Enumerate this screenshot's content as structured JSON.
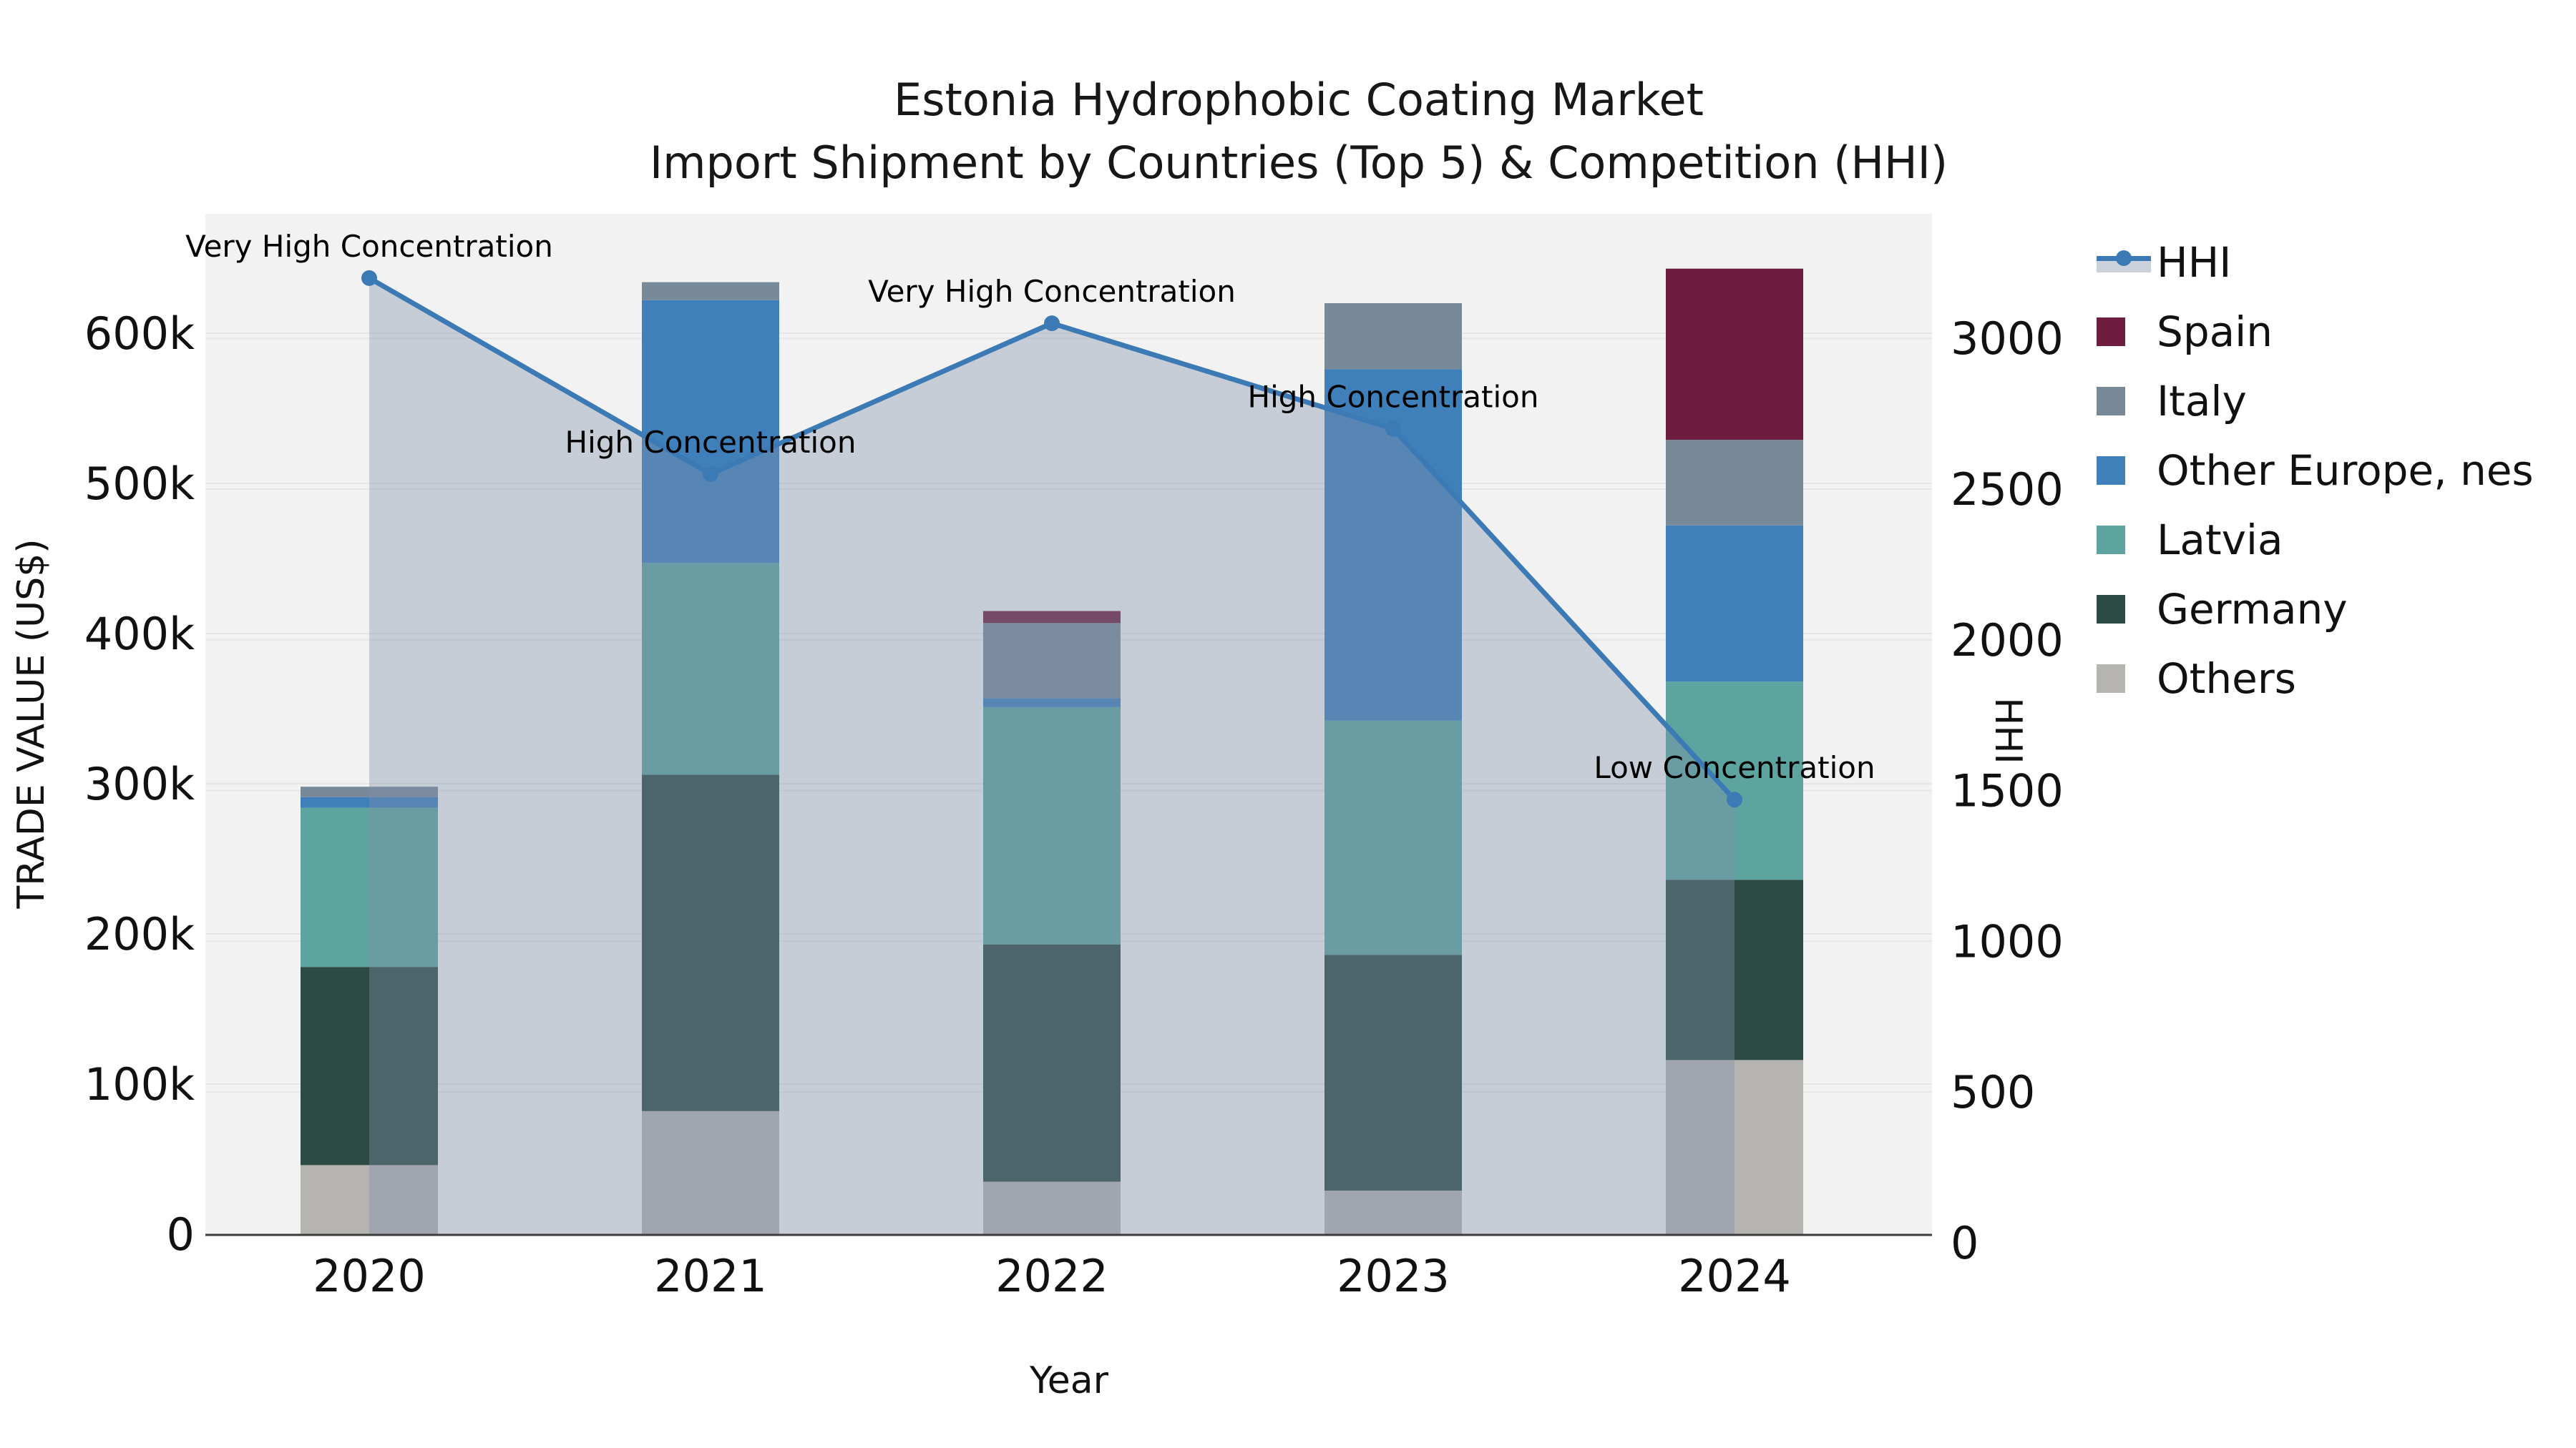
{
  "chart_data": {
    "type": "combo_stacked_bar_line",
    "title_line1": "Estonia Hydrophobic Coating Market",
    "title_line2": "Import Shipment by Countries (Top 5) & Competition (HHI)",
    "xlabel": "Year",
    "ylabel_left": "TRADE VALUE (US$)",
    "ylabel_right": "HHI",
    "categories": [
      "2020",
      "2021",
      "2022",
      "2023",
      "2024"
    ],
    "bar_series_bottom_to_top": [
      {
        "name": "Others",
        "color": "#b5b4b1",
        "values": [
          46000,
          82000,
          35000,
          29000,
          116000
        ]
      },
      {
        "name": "Germany",
        "color": "#2c4b45",
        "values": [
          132000,
          224000,
          158000,
          157000,
          120000
        ]
      },
      {
        "name": "Latvia",
        "color": "#5da3a0",
        "values": [
          106000,
          141000,
          158000,
          156000,
          132000
        ]
      },
      {
        "name": "Other Europe, nes",
        "color": "#4080ba",
        "values": [
          7000,
          175000,
          6000,
          234000,
          104000
        ]
      },
      {
        "name": "Italy",
        "color": "#78899a",
        "values": [
          7000,
          12000,
          50000,
          44000,
          57000
        ]
      },
      {
        "name": "Spain",
        "color": "#6e1d3f",
        "values": [
          0,
          0,
          8000,
          0,
          114000
        ]
      }
    ],
    "bar_totals": [
      298000,
      634000,
      415000,
      620000,
      643000
    ],
    "line_series": {
      "name": "HHI",
      "color": "#3c7ab6",
      "area_color": "rgba(130,145,172,0.38)",
      "values": [
        3200,
        2550,
        3050,
        2700,
        1470
      ]
    },
    "annotations": [
      {
        "category": "2020",
        "text": "Very High Concentration"
      },
      {
        "category": "2021",
        "text": "High Concentration"
      },
      {
        "category": "2022",
        "text": "Very High Concentration"
      },
      {
        "category": "2023",
        "text": "High Concentration"
      },
      {
        "category": "2024",
        "text": "Low Concentration"
      }
    ],
    "y_left_axis": {
      "tick_labels": [
        "0",
        "100k",
        "200k",
        "300k",
        "400k",
        "500k",
        "600k"
      ],
      "range": [
        0,
        680000
      ],
      "grid": true
    },
    "y_right_axis": {
      "tick_labels": [
        "0",
        "500",
        "1000",
        "1500",
        "2000",
        "2500",
        "3000"
      ],
      "range": [
        0,
        3400
      ],
      "grid": true
    },
    "legend_position": "right",
    "legend": [
      {
        "label": "HHI",
        "type": "line"
      },
      {
        "label": "Spain",
        "type": "patch",
        "color": "#6e1d3f"
      },
      {
        "label": "Italy",
        "type": "patch",
        "color": "#78899a"
      },
      {
        "label": "Other Europe, nes",
        "type": "patch",
        "color": "#4080ba"
      },
      {
        "label": "Latvia",
        "type": "patch",
        "color": "#5da3a0"
      },
      {
        "label": "Germany",
        "type": "patch",
        "color": "#2c4b45"
      },
      {
        "label": "Others",
        "type": "patch",
        "color": "#b5b4b1"
      }
    ],
    "colors": {
      "plot_background": "#f2f2f2",
      "gridline": "#e6e6e6",
      "axis_spine": "#3c3c3c",
      "text": "#1a1a1a"
    }
  }
}
